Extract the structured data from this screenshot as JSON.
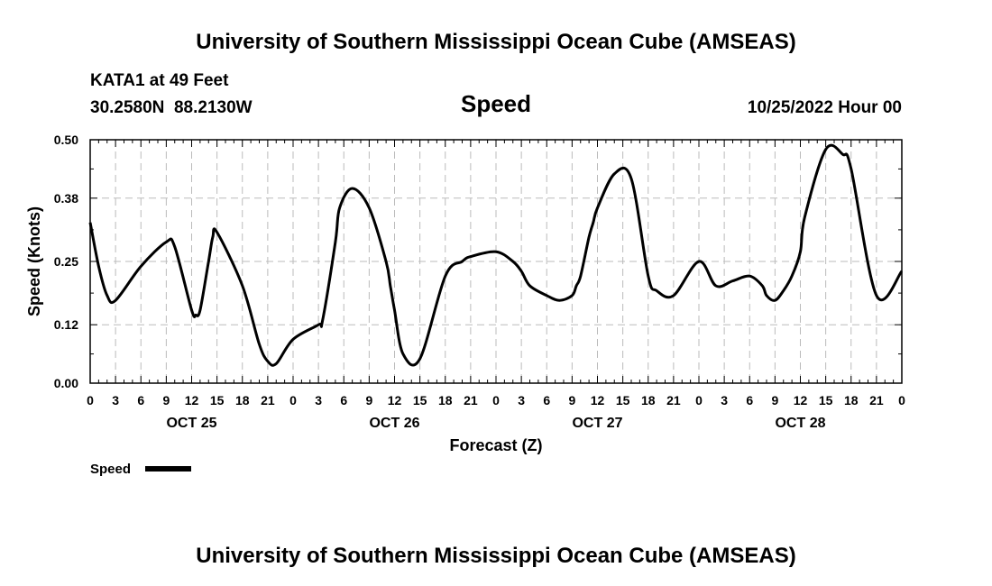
{
  "header": {
    "title": "University of Southern Mississippi Ocean Cube (AMSEAS)",
    "station": "KATA1 at 49 Feet",
    "coordinates": "30.2580N  88.2130W",
    "variable": "Speed",
    "run_time": "10/25/2022 Hour 00"
  },
  "legend": {
    "label": "Speed",
    "color": "#000000"
  },
  "footer": {
    "title": "University of Southern Mississippi Ocean Cube (AMSEAS)"
  },
  "chart_data": {
    "type": "line",
    "title": "Speed",
    "xlabel": "Forecast (Z)",
    "ylabel": "Speed (Knots)",
    "xlim": [
      0,
      96
    ],
    "ylim": [
      0,
      0.5
    ],
    "yticks": [
      0.0,
      0.12,
      0.25,
      0.38,
      0.5
    ],
    "ytick_labels": [
      "0.00",
      "0.12",
      "0.25",
      "0.38",
      "0.50"
    ],
    "xticks": [
      0,
      3,
      6,
      9,
      12,
      15,
      18,
      21,
      24,
      27,
      30,
      33,
      36,
      39,
      42,
      45,
      48,
      51,
      54,
      57,
      60,
      63,
      66,
      69,
      72,
      75,
      78,
      81,
      84,
      87,
      90,
      93,
      96
    ],
    "xtick_labels": [
      "0",
      "3",
      "6",
      "9",
      "12",
      "15",
      "18",
      "21",
      "0",
      "3",
      "6",
      "9",
      "12",
      "15",
      "18",
      "21",
      "0",
      "3",
      "6",
      "9",
      "12",
      "15",
      "18",
      "21",
      "0",
      "3",
      "6",
      "9",
      "12",
      "15",
      "18",
      "21",
      "0"
    ],
    "day_labels": [
      {
        "x": 12,
        "label": "OCT 25"
      },
      {
        "x": 36,
        "label": "OCT 26"
      },
      {
        "x": 60,
        "label": "OCT 27"
      },
      {
        "x": 84,
        "label": "OCT 28"
      }
    ],
    "grid": true,
    "series": [
      {
        "name": "Speed",
        "x": [
          0,
          1,
          2,
          3,
          6,
          9,
          10,
          12,
          12.5,
          13,
          14,
          14.5,
          15,
          18,
          20,
          21,
          22,
          24,
          27,
          27.5,
          29,
          29.5,
          31,
          33,
          35,
          35.5,
          36,
          37,
          39,
          42,
          44,
          45,
          48,
          50,
          51,
          52,
          54,
          55.5,
          57,
          57.5,
          58,
          59,
          59.5,
          60,
          62,
          64,
          66,
          67,
          69,
          72,
          74,
          76,
          78,
          79.5,
          80,
          81,
          82,
          83,
          84,
          84.5,
          87,
          89,
          90,
          93,
          96
        ],
        "values": [
          0.33,
          0.24,
          0.18,
          0.17,
          0.24,
          0.29,
          0.28,
          0.15,
          0.14,
          0.15,
          0.25,
          0.3,
          0.31,
          0.2,
          0.08,
          0.045,
          0.04,
          0.09,
          0.12,
          0.13,
          0.29,
          0.36,
          0.4,
          0.36,
          0.25,
          0.2,
          0.15,
          0.06,
          0.05,
          0.22,
          0.25,
          0.26,
          0.27,
          0.25,
          0.23,
          0.2,
          0.18,
          0.17,
          0.18,
          0.2,
          0.22,
          0.3,
          0.33,
          0.36,
          0.43,
          0.42,
          0.22,
          0.19,
          0.18,
          0.25,
          0.2,
          0.21,
          0.22,
          0.2,
          0.18,
          0.17,
          0.19,
          0.22,
          0.27,
          0.34,
          0.48,
          0.47,
          0.44,
          0.18,
          0.23
        ]
      }
    ]
  }
}
